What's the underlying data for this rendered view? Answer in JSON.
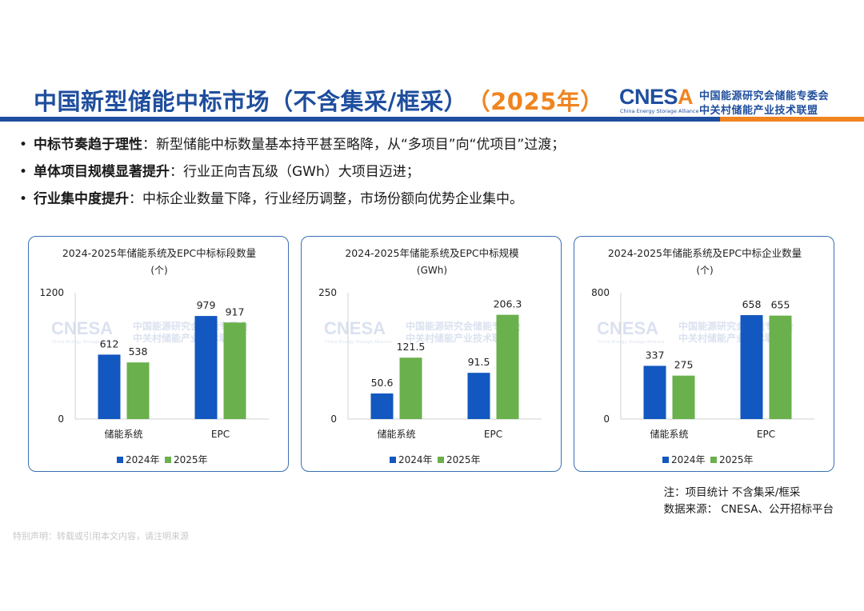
{
  "header": {
    "title": "中国新型储能中标市场（不含集采/框采）",
    "year": "（2025年）",
    "logo": {
      "main_a": "CNES",
      "main_b": "A",
      "sub": "China Energy Storage Alliance",
      "cn1": "中国能源研究会储能专委会",
      "cn2": "中关村储能产业技术联盟"
    }
  },
  "bullets": [
    {
      "bold": "中标节奏趋于理性",
      "text": "：新型储能中标数量基本持平甚至略降，从“多项目”向“优项目”过渡；"
    },
    {
      "bold": "单体项目规模显著提升",
      "text": "：行业正向吉瓦级（GWh）大项目迈进；"
    },
    {
      "bold": "行业集中度提升",
      "text": "：中标企业数量下降，行业经历调整，市场份额向优势企业集中。"
    }
  ],
  "watermark": {
    "main": "CNESA",
    "sub": "China Energy Storage Alliance",
    "cn1": "中国能源研究会储能专委会",
    "cn2": "中关村储能产业技术联盟"
  },
  "colors": {
    "blue": "#1f4e9e",
    "orange": "#f0841f",
    "series2024": "#1357c0",
    "series2025": "#6ab04c"
  },
  "chart_data": [
    {
      "type": "bar",
      "title": "2024-2025年储能系统及EPC中标标段数量",
      "unit": "(个)",
      "categories": [
        "储能系统",
        "EPC"
      ],
      "series": [
        {
          "name": "2024年",
          "values": [
            612,
            979
          ]
        },
        {
          "name": "2025年",
          "values": [
            538,
            917
          ]
        }
      ],
      "ylim": [
        0,
        1200
      ],
      "yticks": [
        "0",
        "1200"
      ],
      "legend": "bottom",
      "grid": false
    },
    {
      "type": "bar",
      "title": "2024-2025年储能系统及EPC中标规模",
      "unit": "(GWh)",
      "categories": [
        "储能系统",
        "EPC"
      ],
      "series": [
        {
          "name": "2024年",
          "values": [
            50.6,
            91.5
          ]
        },
        {
          "name": "2025年",
          "values": [
            121.5,
            206.3
          ]
        }
      ],
      "ylim": [
        0,
        250
      ],
      "yticks": [
        "0",
        "250"
      ],
      "legend": "bottom",
      "grid": false
    },
    {
      "type": "bar",
      "title": "2024-2025年储能系统及EPC中标企业数量",
      "unit": "(个)",
      "categories": [
        "储能系统",
        "EPC"
      ],
      "series": [
        {
          "name": "2024年",
          "values": [
            337,
            658
          ]
        },
        {
          "name": "2025年",
          "values": [
            275,
            655
          ]
        }
      ],
      "ylim": [
        0,
        800
      ],
      "yticks": [
        "0",
        "800"
      ],
      "legend": "bottom",
      "grid": false
    }
  ],
  "notes": {
    "note1": "注：项目统计 不含集采/框采",
    "note2": "数据来源： CNESA、公开招标平台"
  },
  "disclaimer": "特别声明：转载或引用本文内容，请注明来源"
}
